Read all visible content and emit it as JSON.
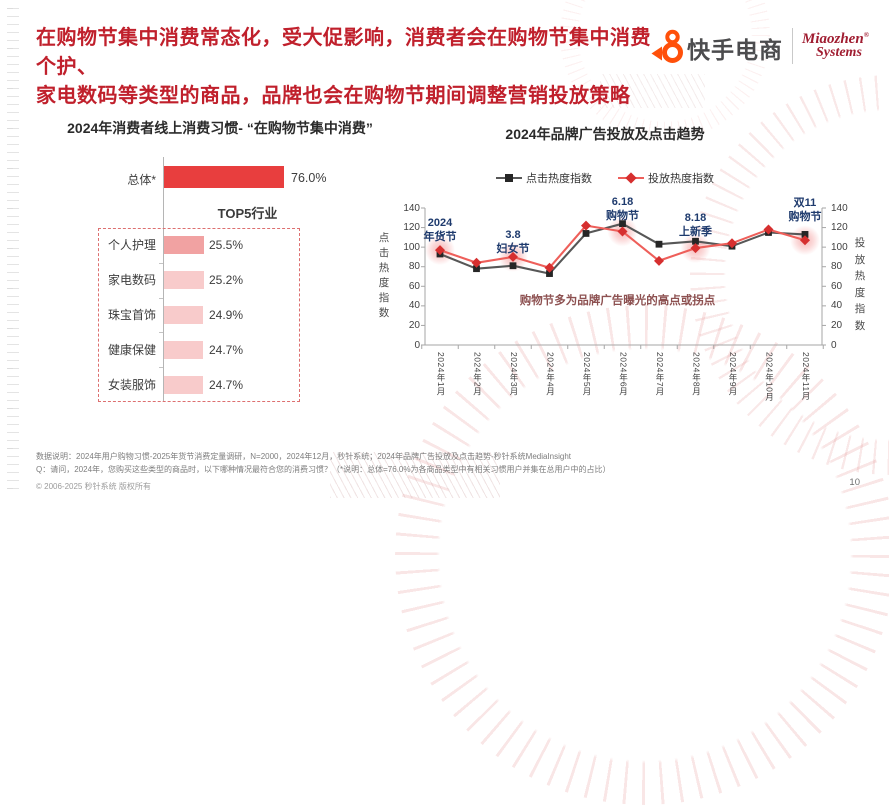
{
  "header": {
    "title_line1": "在购物节集中消费常态化，受大促影响，消费者会在购物节集中消费个护、",
    "title_line2": "家电数码等类型的商品，品牌也会在购物节期间调整营销投放策略",
    "title_color": "#c0202c"
  },
  "logo": {
    "kuaishou_text": "快手电商",
    "kuaishou_color": "#ff500a",
    "miaozhen_line1": "Miaozhen",
    "miaozhen_line2": "Systems",
    "miaozhen_color": "#a01d31"
  },
  "chart_data": [
    {
      "type": "bar",
      "title": "2024年消费者线上消费习惯- “在购物节集中消费”",
      "overall": {
        "label": "总体*",
        "value": 76.0,
        "value_label": "76.0%",
        "bar_color": "#e83e3e"
      },
      "group_title": "TOP5行业",
      "categories": [
        "个人护理",
        "家电数码",
        "珠宝首饰",
        "健康保健",
        "女装服饰"
      ],
      "values": [
        25.5,
        25.2,
        24.9,
        24.7,
        24.7
      ],
      "value_labels": [
        "25.5%",
        "25.2%",
        "24.9%",
        "24.7%",
        "24.7%"
      ],
      "bar_colors": [
        "#f1a2a2",
        "#f8cbcb",
        "#f8cbcb",
        "#f8cbcb",
        "#f8cbcb"
      ],
      "xlim": [
        0,
        100
      ]
    },
    {
      "type": "line",
      "title": "2024年品牌广告投放及点击趋势",
      "categories": [
        "2024年1月",
        "2024年2月",
        "2024年3月",
        "2024年4月",
        "2024年5月",
        "2024年6月",
        "2024年7月",
        "2024年8月",
        "2024年9月",
        "2024年10月",
        "2024年11月"
      ],
      "series": [
        {
          "name": "点击热度指数",
          "marker": "square",
          "line_color": "#575757",
          "marker_color": "#262626",
          "values": [
            93,
            78,
            81,
            73,
            114,
            124,
            103,
            106,
            101,
            115,
            113
          ]
        },
        {
          "name": "投放热度指数",
          "marker": "diamond",
          "line_color": "#ee5f5a",
          "marker_color": "#d62f2f",
          "values": [
            97,
            84,
            90,
            79,
            122,
            116,
            86,
            99,
            104,
            118,
            107
          ]
        }
      ],
      "ylim": [
        0,
        140
      ],
      "ytick_step": 20,
      "left_axis_label": "点击热度指数",
      "right_axis_label": "投放热度指数",
      "legend_position": "top",
      "grid": false,
      "annotations": [
        {
          "month_index": 0,
          "text": "2024\n年货节",
          "top": 216
        },
        {
          "month_index": 2,
          "text": "3.8\n妇女节",
          "top": 228
        },
        {
          "month_index": 5,
          "text": "6.18\n购物节",
          "top": 195
        },
        {
          "month_index": 7,
          "text": "8.18\n上新季",
          "top": 211
        },
        {
          "month_index": 10,
          "text": "双11\n购物节",
          "top": 196
        }
      ],
      "highlight_months": [
        0,
        2,
        5,
        7,
        10
      ],
      "note": "购物节多为品牌广告曝光的高点或拐点"
    }
  ],
  "footer": {
    "note_line1": "数据说明：2024年用户购物习惯-2025年货节消费定量调研，N=2000，2024年12月，秒针系统；2024年品牌广告投放及点击趋势-秒针系统MediaInsight",
    "note_line2": "Q：请问，2024年，您购买这些类型的商品时，以下哪种情况最符合您的消费习惯？（*说明：总体=76.0%为各商品类型中有相关习惯用户并集在总用户中的占比）",
    "copyright": "© 2006-2025 秒针系统 版权所有",
    "page_number": "10"
  }
}
